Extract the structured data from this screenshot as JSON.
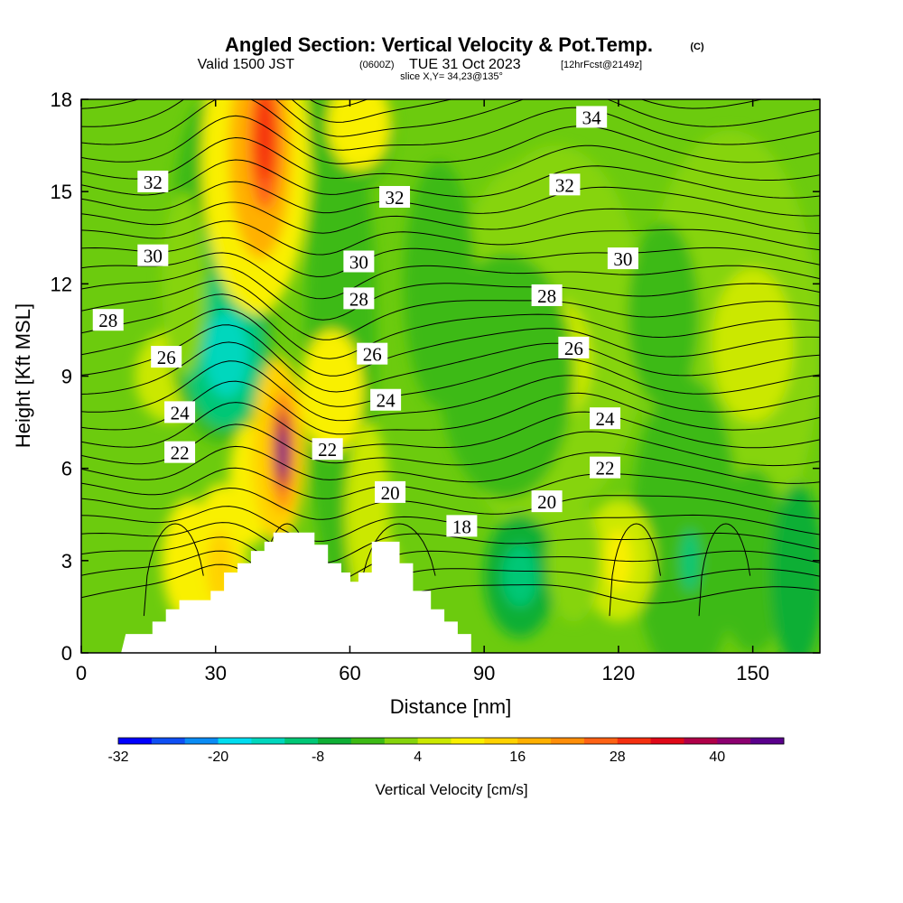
{
  "title": {
    "main": "Angled Section: Vertical Velocity & Pot.Temp.",
    "main_suffix": "(C)",
    "valid_prefix": "Valid 1500 JST",
    "valid_zulu": "(0600Z)",
    "valid_date": "TUE 31 Oct 2023",
    "forecast": "[12hrFcst@2149z]",
    "slice": "slice X,Y= 34,23@135°"
  },
  "chart_data": {
    "type": "contour",
    "xlabel": "Distance [nm]",
    "ylabel": "Height [Kft MSL]",
    "xlim": [
      0,
      165
    ],
    "ylim": [
      0,
      18
    ],
    "xticks": [
      "0",
      "30",
      "60",
      "90",
      "120",
      "150"
    ],
    "yticks": [
      "0",
      "3",
      "6",
      "9",
      "12",
      "15",
      "18"
    ],
    "xtick_values": [
      0,
      30,
      60,
      90,
      120,
      150
    ],
    "ytick_values": [
      0,
      3,
      6,
      9,
      12,
      15,
      18
    ],
    "fill_variable": "Vertical Velocity [cm/s]",
    "contour_variable": "Pot.Temp. (C)",
    "colorbar": {
      "title": "Vertical Velocity [cm/s]",
      "min": -32,
      "max": 48,
      "step": 4,
      "labels": [
        "-32",
        "-20",
        "-8",
        "4",
        "16",
        "28",
        "40"
      ],
      "colors": [
        "#0000ff",
        "#0f4ff5",
        "#0a8cf5",
        "#00ddf0",
        "#00d7bd",
        "#00c776",
        "#0faf35",
        "#3cba14",
        "#86d40c",
        "#cbe800",
        "#f9f000",
        "#ffd200",
        "#ffb000",
        "#ff8e08",
        "#ff6214",
        "#f53010",
        "#e00818",
        "#b00048",
        "#8c0070",
        "#5a008c"
      ]
    },
    "theta_contour_labels": [
      {
        "value": "34",
        "x": 114,
        "y": 17.4
      },
      {
        "value": "32",
        "x": 16,
        "y": 15.3
      },
      {
        "value": "32",
        "x": 70,
        "y": 14.8
      },
      {
        "value": "32",
        "x": 108,
        "y": 15.2
      },
      {
        "value": "30",
        "x": 16,
        "y": 12.9
      },
      {
        "value": "30",
        "x": 62,
        "y": 12.7
      },
      {
        "value": "30",
        "x": 121,
        "y": 12.8
      },
      {
        "value": "28",
        "x": 6,
        "y": 10.8
      },
      {
        "value": "28",
        "x": 62,
        "y": 11.5
      },
      {
        "value": "28",
        "x": 104,
        "y": 11.6
      },
      {
        "value": "26",
        "x": 19,
        "y": 9.6
      },
      {
        "value": "26",
        "x": 65,
        "y": 9.7
      },
      {
        "value": "26",
        "x": 110,
        "y": 9.9
      },
      {
        "value": "24",
        "x": 22,
        "y": 7.8
      },
      {
        "value": "24",
        "x": 68,
        "y": 8.2
      },
      {
        "value": "24",
        "x": 117,
        "y": 7.6
      },
      {
        "value": "22",
        "x": 22,
        "y": 6.5
      },
      {
        "value": "22",
        "x": 55,
        "y": 6.6
      },
      {
        "value": "22",
        "x": 117,
        "y": 6.0
      },
      {
        "value": "20",
        "x": 69,
        "y": 5.2
      },
      {
        "value": "20",
        "x": 104,
        "y": 4.9
      },
      {
        "value": "18",
        "x": 85,
        "y": 4.1
      }
    ],
    "terrain_heights": [
      {
        "x": 0,
        "h": 0
      },
      {
        "x": 9,
        "h": 0
      },
      {
        "x": 10,
        "h": 0.6
      },
      {
        "x": 16,
        "h": 0.6
      },
      {
        "x": 16,
        "h": 1.0
      },
      {
        "x": 19,
        "h": 1.0
      },
      {
        "x": 19,
        "h": 1.4
      },
      {
        "x": 22,
        "h": 1.4
      },
      {
        "x": 22,
        "h": 1.7
      },
      {
        "x": 29,
        "h": 1.7
      },
      {
        "x": 29,
        "h": 2.0
      },
      {
        "x": 32,
        "h": 2.0
      },
      {
        "x": 32,
        "h": 2.6
      },
      {
        "x": 35,
        "h": 2.6
      },
      {
        "x": 35,
        "h": 2.9
      },
      {
        "x": 38,
        "h": 2.9
      },
      {
        "x": 38,
        "h": 3.3
      },
      {
        "x": 41,
        "h": 3.3
      },
      {
        "x": 41,
        "h": 3.6
      },
      {
        "x": 43,
        "h": 3.6
      },
      {
        "x": 43,
        "h": 3.9
      },
      {
        "x": 52,
        "h": 3.9
      },
      {
        "x": 52,
        "h": 3.5
      },
      {
        "x": 55,
        "h": 3.5
      },
      {
        "x": 55,
        "h": 2.9
      },
      {
        "x": 58,
        "h": 2.9
      },
      {
        "x": 58,
        "h": 2.6
      },
      {
        "x": 60,
        "h": 2.6
      },
      {
        "x": 60,
        "h": 2.3
      },
      {
        "x": 62,
        "h": 2.3
      },
      {
        "x": 62,
        "h": 2.6
      },
      {
        "x": 65,
        "h": 2.6
      },
      {
        "x": 65,
        "h": 3.6
      },
      {
        "x": 71,
        "h": 3.6
      },
      {
        "x": 71,
        "h": 2.9
      },
      {
        "x": 74,
        "h": 2.9
      },
      {
        "x": 74,
        "h": 2.0
      },
      {
        "x": 78,
        "h": 2.0
      },
      {
        "x": 78,
        "h": 1.4
      },
      {
        "x": 81,
        "h": 1.4
      },
      {
        "x": 81,
        "h": 1.0
      },
      {
        "x": 84,
        "h": 1.0
      },
      {
        "x": 84,
        "h": 0.6
      },
      {
        "x": 87,
        "h": 0.6
      },
      {
        "x": 87,
        "h": 0
      },
      {
        "x": 165,
        "h": 0
      }
    ]
  }
}
